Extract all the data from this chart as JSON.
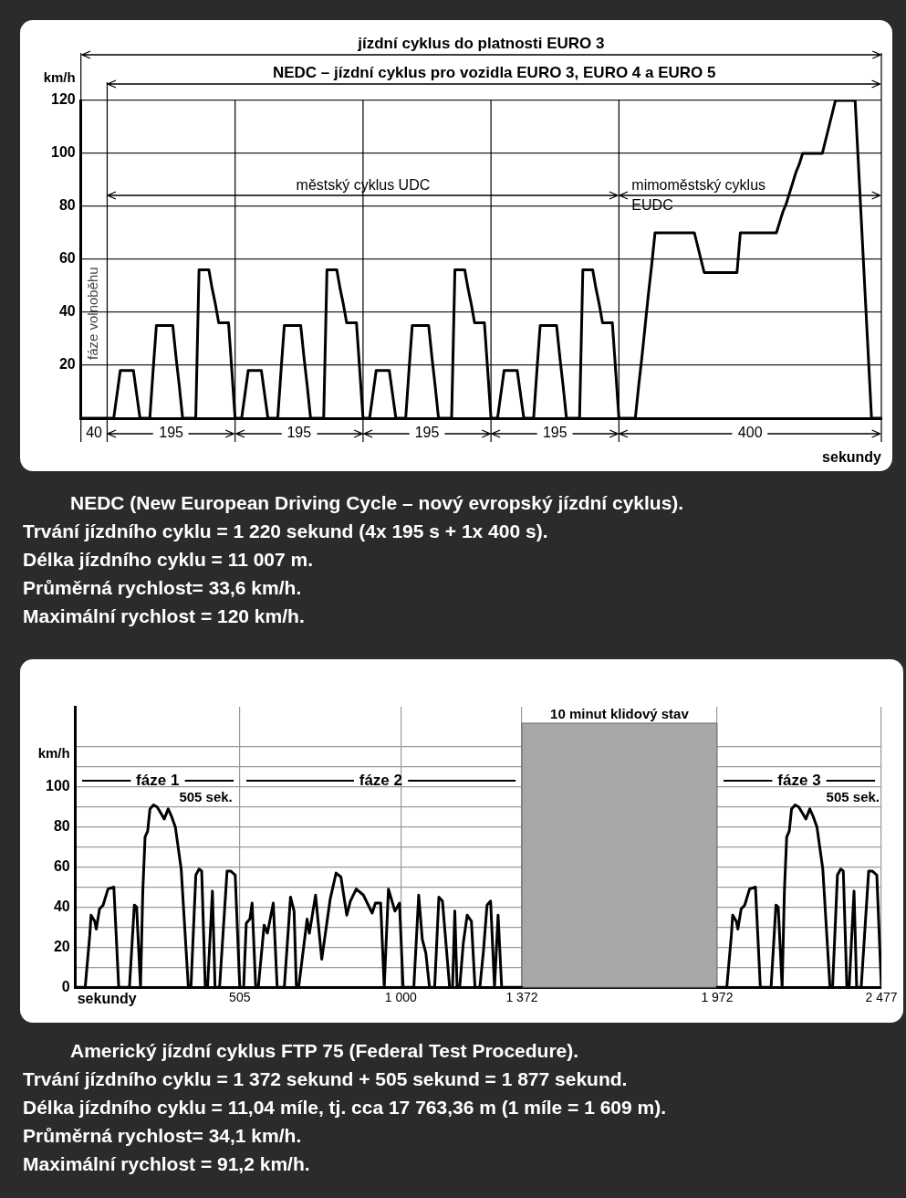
{
  "chart_data": [
    {
      "type": "line",
      "color": "#000000",
      "marker": "none",
      "grid": "y",
      "tick_labels": "y",
      "legend": false,
      "xlabel": "sekundy",
      "ylabel": "km/h",
      "categories": [
        null,
        null,
        null,
        null,
        null,
        null,
        null,
        null,
        null,
        null,
        null,
        null,
        null,
        null,
        null,
        null,
        null,
        null,
        null,
        null,
        null,
        null,
        null,
        null,
        null,
        null,
        null,
        null,
        null,
        null,
        null,
        null,
        null,
        null,
        null,
        null,
        null,
        null,
        null,
        null,
        null,
        null,
        null,
        null,
        null,
        null,
        null,
        null,
        null,
        null,
        null,
        null,
        null,
        null,
        null,
        null,
        null,
        null,
        null,
        null,
        null,
        null,
        null,
        null,
        null,
        null,
        null,
        null,
        null,
        null,
        null,
        null,
        null,
        null,
        null,
        null,
        null,
        null,
        null,
        null,
        null,
        null,
        null,
        null,
        null,
        null,
        null,
        null,
        null,
        null,
        null,
        null,
        null,
        null,
        null,
        null,
        null,
        null,
        null,
        null,
        null,
        null,
        null,
        null,
        null,
        null,
        null,
        null,
        null,
        null,
        null,
        null,
        null,
        null,
        null,
        null,
        null,
        null,
        null,
        null,
        null,
        null,
        null,
        null,
        null,
        null,
        null,
        null,
        null,
        null,
        null,
        null,
        null,
        null,
        null,
        null,
        null,
        null,
        null,
        null,
        null,
        null,
        null,
        null,
        null,
        null,
        null,
        null,
        null,
        null,
        null,
        null,
        null,
        null,
        null,
        null,
        null,
        null,
        null,
        null,
        null,
        null,
        null,
        null,
        null,
        null,
        null,
        null,
        null,
        null,
        null,
        null,
        null,
        null,
        null,
        null,
        null,
        null,
        null,
        null,
        null,
        null,
        null,
        null,
        null,
        null,
        null,
        null,
        null,
        null,
        null,
        null,
        null,
        null,
        null,
        null,
        null,
        null,
        null,
        null,
        null,
        null,
        null,
        null,
        null,
        null,
        null,
        null,
        null,
        null,
        null,
        null,
        null,
        null,
        null,
        null,
        null,
        null,
        null,
        null,
        null,
        null,
        null,
        null,
        null,
        null,
        null,
        null,
        null,
        null,
        null,
        null,
        null,
        null,
        null,
        null,
        null,
        null,
        null,
        null,
        null,
        null,
        null,
        null,
        null
      ],
      "ylim": [
        0,
        120
      ],
      "yticks": [
        20,
        40,
        60,
        80,
        100,
        120
      ],
      "values": [
        0,
        0,
        0,
        0,
        0,
        0,
        0,
        0,
        0,
        0,
        0,
        9,
        18,
        18,
        18,
        18,
        18,
        9,
        0,
        0,
        0,
        0,
        18,
        35,
        35,
        35,
        35,
        35,
        35,
        23,
        12,
        0,
        0,
        0,
        0,
        0,
        56,
        56,
        56,
        56,
        49,
        43,
        36,
        36,
        36,
        36,
        18,
        0,
        0,
        0,
        9,
        18,
        18,
        18,
        18,
        18,
        9,
        0,
        0,
        0,
        0,
        18,
        35,
        35,
        35,
        35,
        35,
        35,
        23,
        12,
        0,
        0,
        0,
        0,
        0,
        56,
        56,
        56,
        56,
        49,
        43,
        36,
        36,
        36,
        36,
        18,
        0,
        0,
        0,
        9,
        18,
        18,
        18,
        18,
        18,
        9,
        0,
        0,
        0,
        0,
        18,
        35,
        35,
        35,
        35,
        35,
        35,
        23,
        12,
        0,
        0,
        0,
        0,
        0,
        56,
        56,
        56,
        56,
        49,
        43,
        36,
        36,
        36,
        36,
        18,
        0,
        0,
        0,
        9,
        18,
        18,
        18,
        18,
        18,
        9,
        0,
        0,
        0,
        0,
        18,
        35,
        35,
        35,
        35,
        35,
        35,
        23,
        12,
        0,
        0,
        0,
        0,
        0,
        56,
        56,
        56,
        56,
        49,
        43,
        36,
        36,
        36,
        36,
        18,
        0,
        0,
        0,
        0,
        0,
        0,
        12,
        23,
        35,
        47,
        58,
        70,
        70,
        70,
        70,
        70,
        70,
        70,
        70,
        70,
        70,
        70,
        70,
        70,
        65,
        60,
        55,
        55,
        55,
        55,
        55,
        55,
        55,
        55,
        55,
        55,
        55,
        70,
        70,
        70,
        70,
        70,
        70,
        70,
        70,
        70,
        70,
        70,
        70,
        74,
        78,
        81,
        85,
        89,
        93,
        96,
        100,
        100,
        100,
        100,
        100,
        100,
        100,
        105,
        110,
        115,
        120,
        120,
        120,
        120,
        120,
        120,
        120,
        96,
        72,
        48,
        24,
        0,
        0,
        0,
        0
      ],
      "annotations": [
        "40",
        "195",
        "195",
        "195",
        "195",
        "400",
        "městský cyklus UDC",
        "mimoměstský cyklus EUDC",
        "NEDC – jízdní cyklus pro vozidla EURO 3, EURO 4 a EURO 5",
        "jízdní cyklus do platnosti EURO 3",
        "fáze volnoběhu",
        "NEDC (New European Driving Cycle – nový evropský jízdní cyklus).",
        "Trvání jízdního cyklu = 1 220 sekund (4x 195 s + 1x 400 s).",
        "Délka jízdního cyklu = 11 007 m.",
        "Průměrná rychlost= 33,6 km/h.",
        "Maximální rychlost = 120 km/h."
      ]
    },
    {
      "type": "line",
      "color": "#000000",
      "marker": "none",
      "grid": true,
      "legend": false,
      "xlabel": "sekundy",
      "ylabel": "km/h",
      "xlim": [
        0,
        2477
      ],
      "ylim": [
        0,
        140
      ],
      "xticks": [
        505,
        {
          "value": 1000,
          "label": "1 000"
        },
        {
          "value": 1372,
          "label": "1 372"
        },
        {
          "value": 1972,
          "label": "1 972"
        },
        {
          "value": 2477,
          "label": "2 477"
        }
      ],
      "yticks": [
        0,
        {
          "value": 10,
          "label": null
        },
        20,
        {
          "value": 30,
          "label": null
        },
        40,
        {
          "value": 50,
          "label": null
        },
        60,
        {
          "value": 70,
          "label": null
        },
        80,
        {
          "value": 90,
          "label": null
        },
        100,
        {
          "value": 110,
          "label": null
        },
        {
          "value": 120,
          "label": null
        }
      ],
      "x": [
        0,
        30,
        44,
        48,
        59,
        64,
        74,
        85,
        100,
        118,
        133,
        166,
        181,
        188,
        200,
        207,
        214,
        222,
        229,
        240,
        251,
        262,
        273,
        285,
        296,
        307,
        325,
        347,
        355,
        370,
        380,
        388,
        399,
        406,
        421,
        429,
        443,
        466,
        477,
        491,
        505,
        517,
        525,
        536,
        543,
        554,
        562,
        573,
        580,
        590,
        608,
        620,
        642,
        661,
        672,
        679,
        686,
        712,
        719,
        738,
        757,
        783,
        801,
        816,
        834,
        845,
        863,
        885,
        912,
        922,
        938,
        949,
        962,
        982,
        996,
        1007,
        1040,
        1055,
        1066,
        1077,
        1088,
        1104,
        1117,
        1128,
        1150,
        1159,
        1166,
        1173,
        1181,
        1192,
        1204,
        1217,
        1228,
        1243,
        1254,
        1265,
        1276,
        1288,
        1299,
        1310,
        1372,
        1672,
        1972,
        2002,
        2016,
        2020,
        2031,
        2036,
        2046,
        2057,
        2072,
        2090,
        2105,
        2138,
        2153,
        2160,
        2172,
        2179,
        2186,
        2194,
        2201,
        2212,
        2223,
        2234,
        2245,
        2257,
        2268,
        2279,
        2297,
        2319,
        2327,
        2342,
        2352,
        2360,
        2371,
        2378,
        2393,
        2401,
        2415,
        2438,
        2449,
        2463,
        2477
      ],
      "values": [
        0,
        0,
        26,
        36,
        33,
        29,
        39,
        41,
        49,
        50,
        0,
        0,
        41,
        40,
        0,
        48,
        75,
        78,
        89,
        91,
        90,
        87,
        84,
        89,
        85,
        80,
        59,
        0,
        0,
        56,
        59,
        58,
        0,
        0,
        48,
        0,
        0,
        58,
        58,
        56,
        0,
        0,
        32,
        34,
        42,
        0,
        0,
        19,
        31,
        27,
        42,
        0,
        0,
        45,
        38,
        0,
        0,
        34,
        27,
        46,
        14,
        44,
        57,
        55,
        36,
        43,
        49,
        46,
        37,
        42,
        42,
        0,
        49,
        38,
        42,
        0,
        0,
        46,
        24,
        17,
        0,
        0,
        45,
        43,
        0,
        0,
        38,
        0,
        0,
        22,
        36,
        33,
        0,
        0,
        18,
        41,
        43,
        0,
        36,
        0,
        0,
        null,
        0,
        0,
        26,
        36,
        33,
        29,
        39,
        41,
        49,
        50,
        0,
        0,
        41,
        40,
        0,
        48,
        75,
        78,
        89,
        91,
        90,
        87,
        84,
        89,
        85,
        80,
        59,
        0,
        0,
        56,
        59,
        58,
        0,
        0,
        48,
        0,
        0,
        58,
        58,
        56,
        0
      ],
      "bands": [
        {
          "axis": "x",
          "from": 1372,
          "to": 1972,
          "label": "10 minut klidový stav",
          "color": "#a8a8a8"
        }
      ],
      "annotations": [
        "fáze 1",
        "fáze 2",
        "fáze 3",
        "505 sek.",
        "505 sek.",
        "Americký jízdní cyklus FTP 75 (Federal Test Procedure).",
        "Trvání jízdního cyklu = 1 372 sekund + 505 sekund = 1 877 sekund.",
        "Délka jízdního cyklu = 11,04 míle, tj. cca 17 763,36 m (1 míle = 1 609 m).",
        "Průměrná rychlost= 34,1 km/h.",
        "Maximální rychlost = 91,2 km/h."
      ]
    }
  ]
}
